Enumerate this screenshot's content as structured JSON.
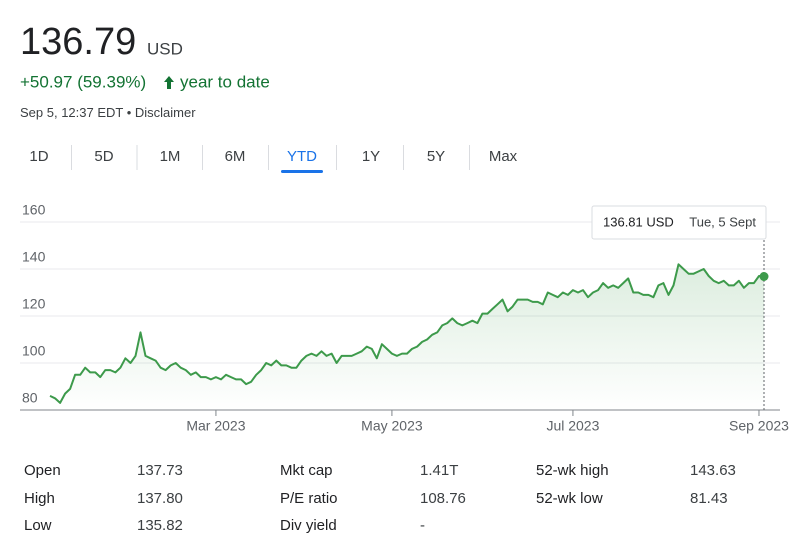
{
  "header": {
    "price": "136.79",
    "currency": "USD",
    "change": "+50.97 (59.39%)",
    "period": "year to date",
    "timestamp": "Sep 5, 12:37 EDT",
    "disclaimer": "Disclaimer"
  },
  "tabs": {
    "items": [
      "1D",
      "5D",
      "1M",
      "6M",
      "YTD",
      "1Y",
      "5Y",
      "Max"
    ],
    "selected": "YTD"
  },
  "chart_data": {
    "type": "line",
    "color": "#3d9a4b",
    "grid": true,
    "values": [
      86,
      85,
      83,
      87,
      89,
      95,
      95,
      98,
      96,
      96,
      94,
      97,
      97,
      96,
      98,
      102,
      100,
      103,
      113,
      103,
      102,
      101,
      98,
      97,
      99,
      100,
      98,
      97,
      95,
      96,
      94,
      94,
      93,
      94,
      93,
      95,
      94,
      93,
      93,
      91,
      92,
      95,
      97,
      100,
      99,
      101,
      99,
      99,
      98,
      98,
      101,
      103,
      104,
      103,
      105,
      103,
      104,
      100,
      103,
      103,
      103,
      104,
      105,
      107,
      106,
      102,
      108,
      106,
      104,
      103,
      104,
      104,
      106,
      107,
      109,
      110,
      112,
      113,
      116,
      117,
      119,
      117,
      116,
      117,
      118,
      117,
      121,
      121,
      123,
      125,
      127,
      122,
      124,
      127,
      127,
      127,
      126,
      126,
      125,
      130,
      129,
      128,
      130,
      129,
      131,
      130,
      131,
      128,
      130,
      131,
      134,
      132,
      133,
      132,
      134,
      136,
      130,
      130,
      129,
      129,
      128,
      133,
      134,
      129,
      133,
      142,
      140,
      138,
      138,
      139,
      140,
      137,
      135,
      134,
      135,
      133,
      133,
      135,
      132,
      134,
      134,
      137,
      136.81
    ],
    "ylim": [
      80,
      160
    ],
    "yticks": [
      80,
      100,
      120,
      140,
      160
    ],
    "xlim": [
      0,
      142
    ],
    "xticks": [
      {
        "value": 33,
        "label": "Mar 2023"
      },
      {
        "value": 68,
        "label": "May 2023"
      },
      {
        "value": 104,
        "label": "Jul 2023"
      },
      {
        "value": 141,
        "label": "Sep 2023"
      }
    ],
    "tooltip": {
      "value": "136.81 USD",
      "date": "Tue, 5 Sept"
    }
  },
  "stats": [
    [
      [
        "Open",
        "137.73"
      ],
      [
        "Mkt cap",
        "1.41T"
      ],
      [
        "52-wk high",
        "143.63"
      ]
    ],
    [
      [
        "High",
        "137.80"
      ],
      [
        "P/E ratio",
        "108.76"
      ],
      [
        "52-wk low",
        "81.43"
      ]
    ],
    [
      [
        "Low",
        "135.82"
      ],
      [
        "Div yield",
        "-"
      ]
    ]
  ]
}
